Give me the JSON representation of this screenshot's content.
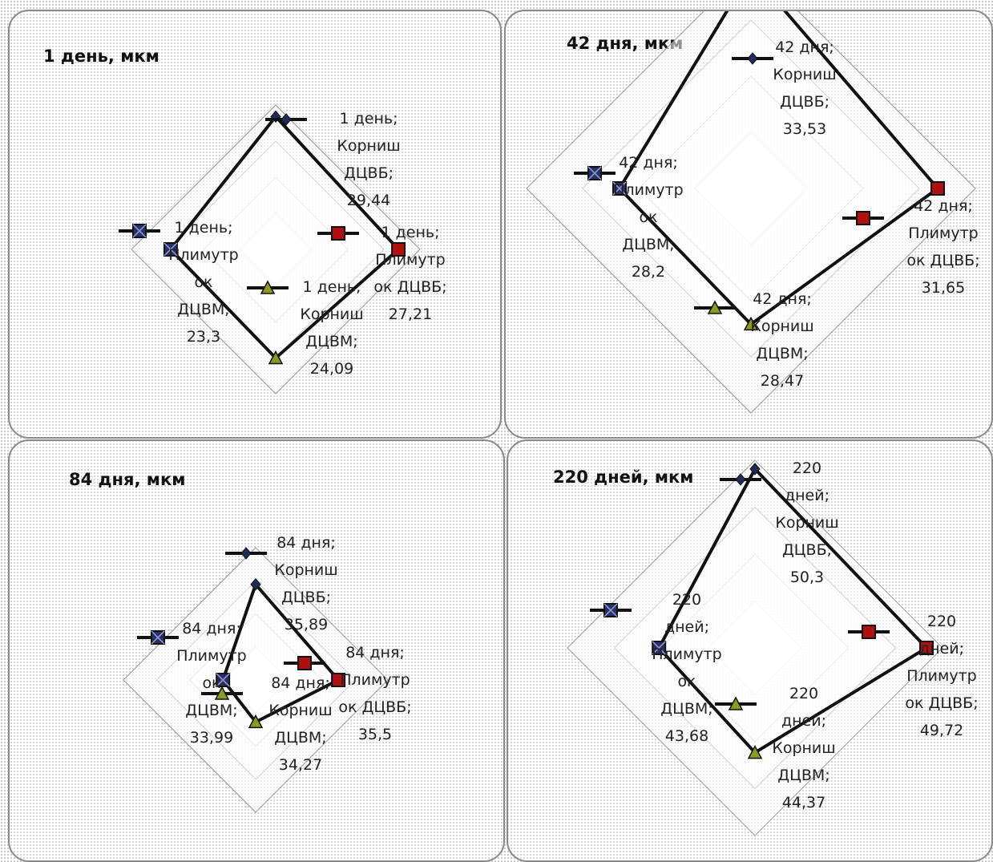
{
  "chart_data": [
    {
      "type": "radar",
      "title": "1 день, мкм",
      "period": "1 день",
      "axes": [
        "Корниш ДЦВБ",
        "Плимутрок ДЦВБ",
        "Корниш ДЦВМ",
        "Плимутрок ДЦВМ"
      ],
      "values": [
        29.44,
        27.21,
        24.09,
        23.3
      ],
      "labels": [
        [
          "1 день;",
          "Корниш",
          "ДЦВБ;",
          "29,44"
        ],
        [
          "1 день;",
          "Плимутр",
          "ок ДЦВБ;",
          "27,21"
        ],
        [
          "1 день;",
          "Корниш",
          "ДЦВМ;",
          "24,09"
        ],
        [
          "1 день;",
          "Плимутр",
          "ок",
          "ДЦВМ;",
          "23,3"
        ]
      ],
      "range": [
        0,
        32
      ],
      "rings": 4,
      "grid": true
    },
    {
      "type": "radar",
      "title": "42 дня, мкм",
      "period": "42 дня",
      "axes": [
        "Корниш ДЦВБ",
        "Плимутрок ДЦВБ",
        "Корниш ДЦВМ",
        "Плимутрок ДЦВМ"
      ],
      "values": [
        33.53,
        31.65,
        28.47,
        28.2
      ],
      "labels": [
        [
          "42 дня;",
          "Корниш",
          "ДЦВБ;",
          "33,53"
        ],
        [
          "42 дня;",
          "Плимутр",
          "ок ДЦВБ;",
          "31,65"
        ],
        [
          "42 дня;",
          "Корниш",
          "ДЦВМ;",
          "28,47"
        ],
        [
          "42 дня;",
          "Плимутр",
          "ок",
          "ДЦВМ;",
          "28,2"
        ]
      ],
      "range": [
        20,
        34
      ],
      "rings": 4,
      "grid": true
    },
    {
      "type": "radar",
      "title": "84 дня, мкм",
      "period": "84 дня",
      "axes": [
        "Корниш ДЦВБ",
        "Плимутрок ДЦВБ",
        "Корниш ДЦВМ",
        "Плимутрок ДЦВМ"
      ],
      "values": [
        35.89,
        35.5,
        34.27,
        33.99
      ],
      "labels": [
        [
          "84 дня;",
          "Корниш",
          "ДЦВБ;",
          "35,89"
        ],
        [
          "84 дня;",
          "Плимутр",
          "ок ДЦВБ;",
          "35,5"
        ],
        [
          "84 дня;",
          "Корниш",
          "ДЦВМ;",
          "34,27"
        ],
        [
          "84 дня;",
          "Плимутр",
          "ок",
          "ДЦВМ;",
          "33,99"
        ]
      ],
      "range": [
        33,
        37
      ],
      "rings": 4,
      "grid": true
    },
    {
      "type": "radar",
      "title": "220 дней, мкм",
      "period": "220 дней",
      "axes": [
        "Корниш ДЦВБ",
        "Плимутрок ДЦВБ",
        "Корниш ДЦВМ",
        "Плимутрок ДЦВМ"
      ],
      "values": [
        50.3,
        49.72,
        44.37,
        43.68
      ],
      "labels": [
        [
          "220",
          "дней;",
          "Корниш",
          "ДЦВБ;",
          "50,3"
        ],
        [
          "220",
          "дней;",
          "Плимутр",
          "ок ДЦВБ;",
          "49,72"
        ],
        [
          "220",
          "дней;",
          "Корниш",
          "ДЦВМ;",
          "44,37"
        ],
        [
          "220",
          "дней;",
          "Плимутр",
          "ок",
          "ДЦВМ;",
          "43,68"
        ]
      ],
      "range": [
        36,
        51
      ],
      "rings": 4,
      "grid": true
    }
  ],
  "series_styles": {
    "line_color": "#111111",
    "marker_kinds": [
      "diamond",
      "square",
      "triangle",
      "x-square"
    ],
    "marker_fills": [
      "#1f2b57",
      "#b01010",
      "#8c9a1e",
      "#2a2f6a"
    ]
  }
}
